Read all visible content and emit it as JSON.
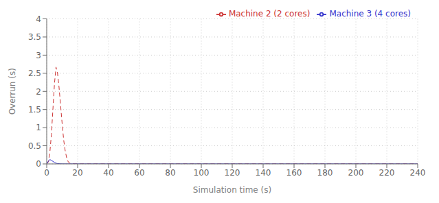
{
  "chart_data": {
    "type": "line",
    "xlabel": "Simulation time (s)",
    "ylabel": "Overrun (s)",
    "xlim": [
      0,
      240
    ],
    "ylim": [
      0,
      4
    ],
    "xticks": [
      0,
      20,
      40,
      60,
      80,
      100,
      120,
      140,
      160,
      180,
      200,
      220,
      240
    ],
    "yticks": [
      0,
      0.5,
      1,
      1.5,
      2,
      2.5,
      3,
      3.5,
      4
    ],
    "grid": true,
    "legend": "upper right",
    "series": [
      {
        "name": "Machine 2 (2 cores)",
        "color": "#cc3333",
        "line_style": "dashed",
        "x": [
          0,
          1,
          2,
          3,
          4,
          5,
          6,
          7,
          8,
          9,
          10,
          11,
          12,
          13,
          14,
          15,
          16,
          17,
          18,
          19,
          20,
          25,
          30,
          40,
          50,
          60,
          80,
          100,
          120,
          140,
          160,
          180,
          200,
          220,
          240
        ],
        "values": [
          0,
          0.05,
          0.3,
          0.8,
          1.5,
          2.2,
          2.67,
          2.5,
          2.1,
          1.6,
          1.1,
          0.65,
          0.35,
          0.15,
          0.05,
          0.02,
          0.01,
          0.005,
          0.002,
          0.001,
          0.0,
          0.0,
          0.0,
          0.0,
          0.0,
          0.0,
          0.0,
          0.0,
          0.0,
          0.0,
          0.0,
          0.0,
          0.0,
          0.0,
          0.0
        ]
      },
      {
        "name": "Machine 3 (4 cores)",
        "color": "#3333cc",
        "line_style": "solid",
        "x": [
          0,
          1,
          2,
          3,
          4,
          5,
          6,
          7,
          8,
          9,
          10,
          11,
          12,
          20,
          40,
          60,
          80,
          100,
          120,
          140,
          160,
          180,
          200,
          220,
          240
        ],
        "values": [
          0,
          0.07,
          0.12,
          0.1,
          0.07,
          0.04,
          0.02,
          0.01,
          0.005,
          0.002,
          0.001,
          0.0,
          0.0,
          0.0,
          0.0,
          0.0,
          0.0,
          0.0,
          0.0,
          0.0,
          0.0,
          0.0,
          0.0,
          0.0,
          0.0
        ]
      }
    ]
  }
}
